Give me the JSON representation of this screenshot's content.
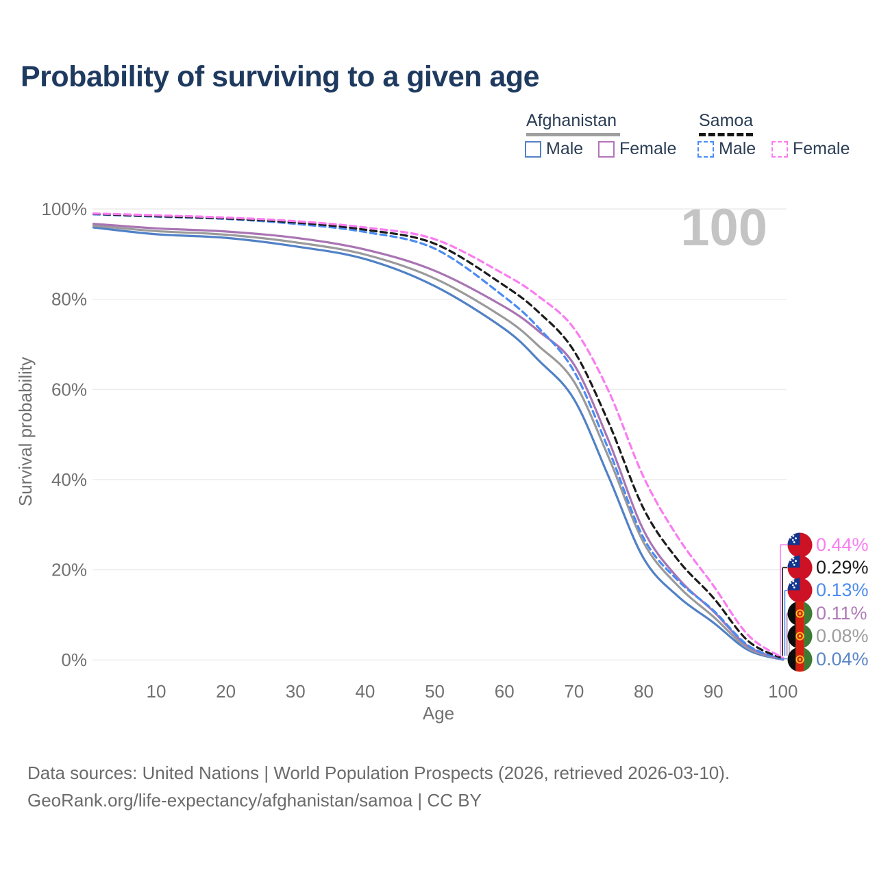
{
  "title": "Probability of surviving to a given age",
  "watermark": "100",
  "legend": {
    "groups": [
      {
        "label": "Afghanistan",
        "line_style": "solid",
        "line_color": "#a0a0a0",
        "items": [
          {
            "label": "Male",
            "color": "#5181c6",
            "dashed": false
          },
          {
            "label": "Female",
            "color": "#b374ba",
            "dashed": false
          }
        ]
      },
      {
        "label": "Samoa",
        "line_style": "dashed",
        "line_color": "#161616",
        "items": [
          {
            "label": "Male",
            "color": "#4a8cf2",
            "dashed": true
          },
          {
            "label": "Female",
            "color": "#fa7df0",
            "dashed": true
          }
        ]
      }
    ]
  },
  "chart_data": {
    "type": "line",
    "title": "Probability of surviving to a given age",
    "xlabel": "Age",
    "ylabel": "Survival probability",
    "xlim": [
      1,
      100
    ],
    "ylim": [
      0,
      100
    ],
    "x_ticks": [
      10,
      20,
      30,
      40,
      50,
      60,
      70,
      80,
      90,
      100
    ],
    "y_ticks": [
      0,
      20,
      40,
      60,
      80,
      100
    ],
    "y_tick_suffix": "%",
    "grid": "horizontal",
    "legend_position": "top-right",
    "ages": [
      1,
      10,
      20,
      30,
      40,
      50,
      60,
      65,
      70,
      75,
      80,
      85,
      90,
      95,
      100
    ],
    "series": [
      {
        "name": "Afghanistan Male",
        "country": "Afghanistan",
        "sex": "male",
        "color": "#5181c6",
        "dashed": false,
        "values": [
          95.9,
          94.4,
          93.6,
          91.7,
          88.9,
          82.9,
          73.4,
          66.3,
          57.8,
          40.5,
          22.5,
          14.0,
          8.3,
          2.2,
          0.04
        ],
        "end_label": "0.04%"
      },
      {
        "name": "Afghanistan Both sexes",
        "country": "Afghanistan",
        "sex": "both",
        "color": "#9a9a9a",
        "dashed": false,
        "values": [
          96.3,
          95.1,
          94.3,
          92.6,
          89.9,
          84.6,
          75.8,
          69.5,
          61.7,
          44.8,
          26.0,
          16.3,
          9.6,
          2.6,
          0.08
        ],
        "end_label": "0.08%"
      },
      {
        "name": "Afghanistan Female",
        "country": "Afghanistan",
        "sex": "female",
        "color": "#a974b3",
        "dashed": false,
        "values": [
          96.7,
          95.7,
          95.0,
          93.6,
          91.0,
          86.3,
          78.3,
          72.8,
          65.5,
          48.5,
          28.7,
          18.0,
          10.8,
          3.0,
          0.11
        ],
        "end_label": "0.11%"
      },
      {
        "name": "Samoa Male",
        "country": "Samoa",
        "sex": "male",
        "color": "#4a8cf2",
        "dashed": true,
        "values": [
          98.8,
          98.3,
          97.8,
          96.7,
          94.9,
          91.2,
          80.5,
          73.5,
          64.0,
          46.5,
          27.0,
          17.5,
          11.0,
          3.2,
          0.13
        ],
        "end_label": "0.13%"
      },
      {
        "name": "Samoa Both sexes",
        "country": "Samoa",
        "sex": "both",
        "color": "#1c1c1c",
        "dashed": true,
        "values": [
          98.9,
          98.4,
          97.9,
          97.0,
          95.4,
          92.3,
          83.0,
          77.0,
          68.5,
          52.5,
          33.5,
          22.0,
          13.8,
          4.2,
          0.29
        ],
        "end_label": "0.29%"
      },
      {
        "name": "Samoa Female",
        "country": "Samoa",
        "sex": "female",
        "color": "#fa7df0",
        "dashed": true,
        "values": [
          99.0,
          98.6,
          98.1,
          97.3,
          95.9,
          93.3,
          85.5,
          80.5,
          73.5,
          59.5,
          40.5,
          27.0,
          16.5,
          5.5,
          0.44
        ],
        "end_label": "0.44%"
      }
    ],
    "end_labels": [
      {
        "value": "0.44%",
        "series": "Samoa Female",
        "flag": "samoa",
        "color": "#fa7df0"
      },
      {
        "value": "0.29%",
        "series": "Samoa Both sexes",
        "flag": "samoa",
        "color": "#1c1c1c"
      },
      {
        "value": "0.13%",
        "series": "Samoa Male",
        "flag": "samoa",
        "color": "#4d8bf0"
      },
      {
        "value": "0.11%",
        "series": "Afghanistan Female",
        "flag": "afghanistan",
        "color": "#b07ab8"
      },
      {
        "value": "0.08%",
        "series": "Afghanistan Both sexes",
        "flag": "afghanistan",
        "color": "#9e9e9e"
      },
      {
        "value": "0.04%",
        "series": "Afghanistan Male",
        "flag": "afghanistan",
        "color": "#5b86c9"
      }
    ]
  },
  "footer": {
    "line1": "Data sources: United Nations | World Population Prospects (2026, retrieved 2026-03-10).",
    "line2": "GeoRank.org/life-expectancy/afghanistan/samoa | CC BY"
  }
}
